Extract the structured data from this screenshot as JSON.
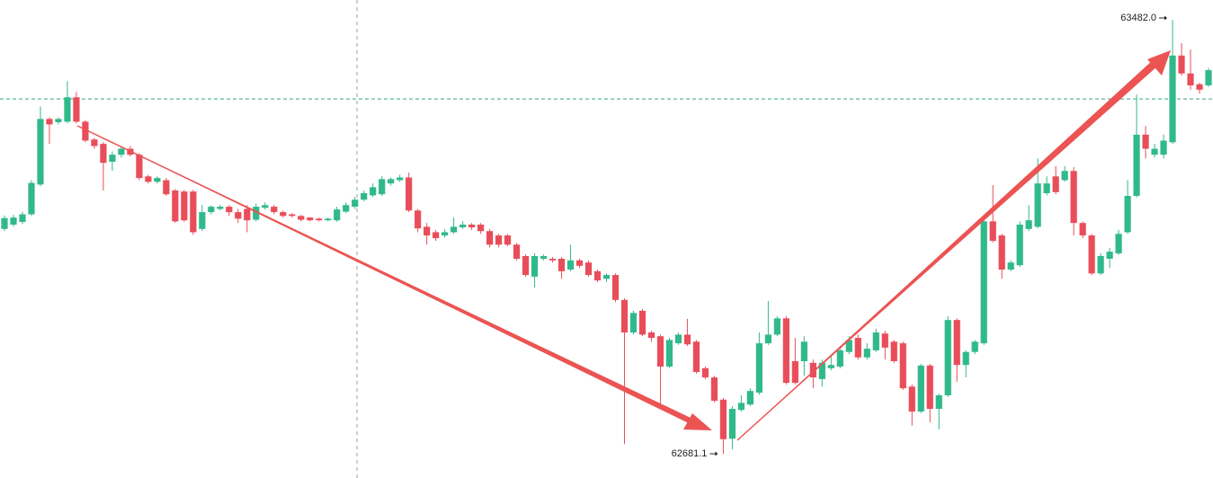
{
  "chart_data": {
    "type": "candlestick",
    "up_color": "#30b98a",
    "down_color": "#e94d5a",
    "ylim": [
      62636.4,
      63518.5
    ],
    "price_line": 63336,
    "price_line_color": "#3aa58c",
    "annotations": [
      "63482.0",
      "62681.1"
    ],
    "open": [
      63096,
      63104,
      63109,
      63123,
      63178,
      63299,
      63293,
      63294,
      63339,
      63294,
      63261,
      63253,
      63220,
      63233,
      63244,
      63233,
      63193,
      63183,
      63186,
      63167,
      63165,
      63165,
      63096,
      63127,
      63133,
      63137,
      63127,
      63133,
      63113,
      63135,
      63137,
      63127,
      63123,
      63120,
      63117,
      63115,
      63112,
      63112,
      63128,
      63137,
      63150,
      63158,
      63160,
      63180,
      63186,
      63191,
      63130,
      63100,
      63090,
      63084,
      63090,
      63099,
      63104,
      63104,
      63092,
      63084,
      63084,
      63067,
      63046,
      63008,
      63041,
      63041,
      63041,
      63021,
      63038,
      63034,
      63018,
      63004,
      63011,
      62965,
      62905,
      62945,
      62905,
      62898,
      62842,
      62885,
      62901,
      62888,
      62839,
      62822,
      62781,
      62709,
      62762,
      62772,
      62794,
      62885,
      62901,
      62931,
      62852,
      62852,
      62849,
      62819,
      62839,
      62842,
      62869,
      62895,
      62859,
      62872,
      62903,
      62888,
      62885,
      62805,
      62759,
      62844,
      62764,
      62789,
      62928,
      62845,
      62869,
      62885,
      63110,
      63084,
      63021,
      63029,
      63096,
      63100,
      63162,
      63193,
      63186,
      63203,
      63107,
      63084,
      63014,
      63041,
      63051,
      63090,
      63157,
      63270,
      63233,
      63233,
      63256,
      63416,
      63383,
      63363,
      63361
    ],
    "high": [
      63121,
      63122,
      63128,
      63186,
      63322,
      63302,
      63302,
      63369,
      63349,
      63297,
      63264,
      63256,
      63239,
      63249,
      63249,
      63236,
      63196,
      63193,
      63190,
      63170,
      63168,
      63168,
      63140,
      63140,
      63140,
      63140,
      63133,
      63140,
      63143,
      63145,
      63140,
      63130,
      63125,
      63122,
      63118,
      63117,
      63117,
      63137,
      63145,
      63155,
      63167,
      63180,
      63193,
      63191,
      63196,
      63200,
      63133,
      63107,
      63094,
      63096,
      63117,
      63110,
      63107,
      63107,
      63096,
      63087,
      63087,
      63070,
      63049,
      63051,
      63049,
      63044,
      63044,
      63067,
      63041,
      63038,
      63021,
      63014,
      63014,
      62968,
      62945,
      62948,
      62908,
      62901,
      62895,
      62905,
      62930,
      62891,
      62842,
      62825,
      62784,
      62769,
      62789,
      62802,
      62905,
      62963,
      62935,
      62935,
      62895,
      62898,
      62855,
      62855,
      62864,
      62880,
      62898,
      62901,
      62885,
      62912,
      62908,
      62891,
      62888,
      62809,
      62847,
      62847,
      62792,
      62935,
      62931,
      62872,
      62891,
      63117,
      63177,
      63087,
      63038,
      63110,
      63140,
      63226,
      63193,
      63212,
      63212,
      63210,
      63110,
      63087,
      63051,
      63061,
      63094,
      63186,
      63344,
      63286,
      63253,
      63270,
      63482.0,
      63439,
      63427,
      63366,
      63393
    ],
    "low": [
      63092,
      63100,
      63105,
      63120,
      63175,
      63253,
      63289,
      63291,
      63291,
      63256,
      63244,
      63167,
      63203,
      63228,
      63230,
      63186,
      63180,
      63180,
      63157,
      63107,
      63109,
      63085,
      63092,
      63123,
      63130,
      63120,
      63107,
      63090,
      63110,
      63132,
      63123,
      63117,
      63117,
      63110,
      63110,
      63110,
      63110,
      63109,
      63125,
      63133,
      63147,
      63155,
      63157,
      63176,
      63183,
      63127,
      63090,
      63067,
      63074,
      63080,
      63087,
      63096,
      63094,
      63087,
      63062,
      63062,
      63064,
      63038,
      63008,
      62988,
      63038,
      63034,
      63004,
      63018,
      63024,
      63008,
      62998,
      62998,
      62961,
      62699,
      62901,
      62898,
      62888,
      62764,
      62839,
      62882,
      62880,
      62829,
      62819,
      62776,
      62681.1,
      62689,
      62759,
      62769,
      62790,
      62882,
      62898,
      62809,
      62809,
      62825,
      62802,
      62805,
      62835,
      62839,
      62865,
      62855,
      62855,
      62869,
      62855,
      62849,
      62799,
      62733,
      62756,
      62739,
      62726,
      62786,
      62814,
      62822,
      62865,
      62882,
      63071,
      63004,
      63018,
      63026,
      63092,
      63097,
      63158,
      63160,
      63183,
      63084,
      63079,
      63011,
      63011,
      63024,
      63048,
      63087,
      63154,
      63226,
      63228,
      63226,
      63253,
      63379,
      63353,
      63346,
      63358
    ],
    "close": [
      63116,
      63117,
      63123,
      63181,
      63299,
      63289,
      63299,
      63339,
      63294,
      63259,
      63249,
      63218,
      63233,
      63244,
      63233,
      63190,
      63183,
      63190,
      63160,
      63110,
      63112,
      63090,
      63127,
      63137,
      63137,
      63127,
      63115,
      63112,
      63137,
      63140,
      63127,
      63120,
      63120,
      63113,
      63112,
      63112,
      63115,
      63132,
      63140,
      63150,
      63162,
      63173,
      63188,
      63188,
      63191,
      63130,
      63097,
      63084,
      63079,
      63090,
      63100,
      63104,
      63099,
      63092,
      63067,
      63067,
      63067,
      63041,
      63011,
      63046,
      63046,
      63038,
      63018,
      63038,
      63028,
      63011,
      63001,
      63011,
      62965,
      62905,
      62941,
      62901,
      62895,
      62842,
      62891,
      62901,
      62883,
      62832,
      62822,
      62779,
      62708,
      62764,
      62775,
      62797,
      62885,
      62901,
      62931,
      62812,
      62812,
      62888,
      62822,
      62849,
      62845,
      62872,
      62891,
      62859,
      62875,
      62905,
      62877,
      62852,
      62802,
      62759,
      62844,
      62764,
      62789,
      62928,
      62845,
      62869,
      62888,
      63110,
      63074,
      63021,
      63034,
      63104,
      63112,
      63180,
      63180,
      63164,
      63203,
      63107,
      63084,
      63014,
      63046,
      63054,
      63087,
      63157,
      63270,
      63244,
      63244,
      63259,
      63416,
      63383,
      63361,
      63353,
      63389
    ]
  }
}
